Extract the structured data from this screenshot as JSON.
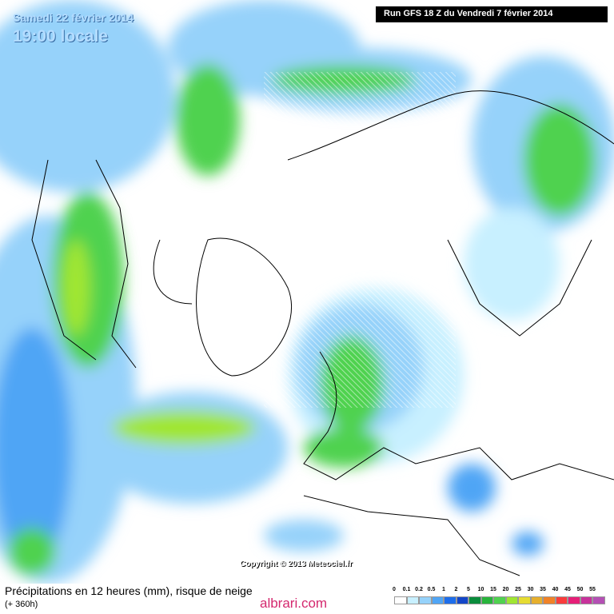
{
  "header": {
    "date": "Samedi 22 février 2014",
    "time": "19:00 locale",
    "run": "Run GFS 18 Z du Vendredi 7 février 2014"
  },
  "map": {
    "copyright": "Copyright © 2013 Meteociel.fr"
  },
  "footer": {
    "title": "Précipitations en 12 heures (mm), risque de neige",
    "lead": "(+ 360h)",
    "watermark": "albrari.com"
  },
  "legend": {
    "labels": [
      "0",
      "0.1",
      "0.2",
      "0.5",
      "1",
      "2",
      "5",
      "10",
      "15",
      "20",
      "25",
      "30",
      "35",
      "40",
      "45",
      "50",
      "55"
    ],
    "colors": [
      "#ffffff",
      "#c8f0ff",
      "#96d2fa",
      "#50a5f5",
      "#1e6eeb",
      "#1446c8",
      "#0a8c3c",
      "#28b43c",
      "#50d250",
      "#a0e632",
      "#e6dc32",
      "#e6af2d",
      "#f08228",
      "#fa3c3c",
      "#e61e78",
      "#c8329b",
      "#b450b4"
    ]
  }
}
